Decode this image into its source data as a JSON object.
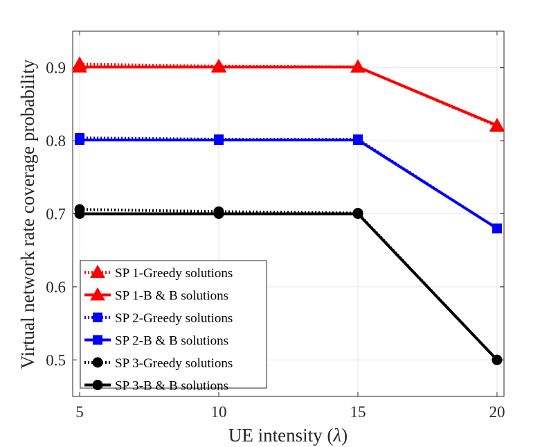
{
  "chart_data": {
    "type": "line",
    "title": "",
    "xlabel": "UE intensity (",
    "xlabel_symbol": "λ",
    "xlabel_suffix": ")",
    "ylabel": "Virtual network rate coverage probability",
    "x": [
      5,
      10,
      15,
      20
    ],
    "xticks": [
      "5",
      "10",
      "15",
      "20"
    ],
    "yticks": [
      "0.5",
      "0.6",
      "0.7",
      "0.8",
      "0.9"
    ],
    "xlim": [
      4.75,
      20.25
    ],
    "ylim": [
      0.45,
      0.95
    ],
    "grid": true,
    "legend_position": "bottom-left",
    "series": [
      {
        "name": "SP 1-Greedy solutions",
        "values": [
          0.905,
          0.902,
          0.901,
          0.82
        ],
        "color": "#ff0000",
        "marker": "triangle",
        "style": "dotted"
      },
      {
        "name": "SP 1-B & B solutions",
        "values": [
          0.901,
          0.901,
          0.901,
          0.821
        ],
        "color": "#ff0000",
        "marker": "triangle",
        "style": "solid"
      },
      {
        "name": "SP 2-Greedy solutions",
        "values": [
          0.804,
          0.802,
          0.802,
          0.68
        ],
        "color": "#0000ff",
        "marker": "square",
        "style": "dotted"
      },
      {
        "name": "SP 2-B & B solutions",
        "values": [
          0.801,
          0.801,
          0.801,
          0.68
        ],
        "color": "#0000ff",
        "marker": "square",
        "style": "solid"
      },
      {
        "name": "SP 3-Greedy solutions",
        "values": [
          0.706,
          0.703,
          0.701,
          0.5
        ],
        "color": "#000000",
        "marker": "circle",
        "style": "dotted"
      },
      {
        "name": "SP 3-B & B solutions",
        "values": [
          0.7,
          0.7,
          0.7,
          0.5
        ],
        "color": "#000000",
        "marker": "circle",
        "style": "solid"
      }
    ]
  }
}
